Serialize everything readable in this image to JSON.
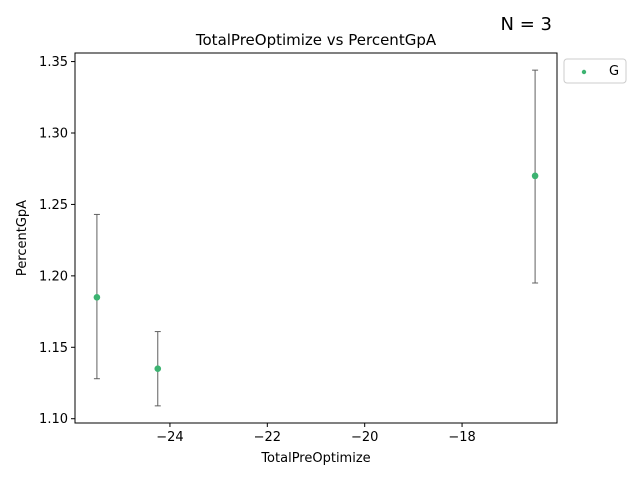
{
  "chart_data": {
    "type": "scatter",
    "title": "TotalPreOptimize vs PercentGpA",
    "xlabel": "TotalPreOptimize",
    "ylabel": "PercentGpA",
    "annotation": "N = 3",
    "xlim": [
      -25.95,
      -16.05
    ],
    "ylim": [
      1.097,
      1.356
    ],
    "xticks": [
      -24,
      -22,
      -20,
      -18
    ],
    "xtick_labels": [
      "−24",
      "−22",
      "−20",
      "−18"
    ],
    "yticks": [
      1.1,
      1.15,
      1.2,
      1.25,
      1.3,
      1.35
    ],
    "ytick_labels": [
      "1.10",
      "1.15",
      "1.20",
      "1.25",
      "1.30",
      "1.35"
    ],
    "grid": false,
    "legend_position": "outside-top-right",
    "series": [
      {
        "name": "G",
        "color": "#3cb371",
        "points": [
          {
            "x": -25.5,
            "y": 1.185,
            "err_low": 1.128,
            "err_high": 1.243
          },
          {
            "x": -24.25,
            "y": 1.135,
            "err_low": 1.109,
            "err_high": 1.161
          },
          {
            "x": -16.5,
            "y": 1.27,
            "err_low": 1.195,
            "err_high": 1.344
          }
        ]
      }
    ],
    "errorbar_color": "#606060"
  }
}
